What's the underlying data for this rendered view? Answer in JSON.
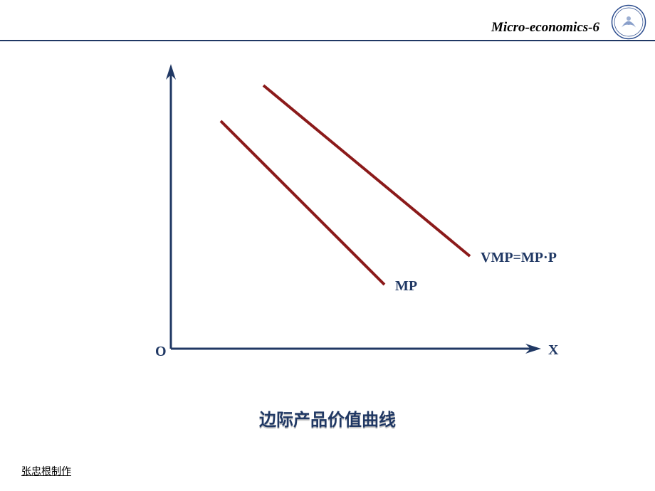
{
  "header": {
    "title": "Micro-economics-6",
    "title_color": "#000000",
    "underline_color": "#203864",
    "logo": {
      "ring_color": "#2a4b8d",
      "inner_color": "#ffffff",
      "accent_color": "#3a5fa6"
    }
  },
  "chart": {
    "type": "line",
    "background_color": "#ffffff",
    "axes": {
      "color": "#203864",
      "stroke_width": 3,
      "arrow_size": 12,
      "origin_label": "O",
      "x_label": "X",
      "label_color": "#203864",
      "label_fontsize": 20,
      "x_range": [
        0,
        520
      ],
      "y_range": [
        0,
        380
      ]
    },
    "lines": [
      {
        "id": "mp",
        "label": "MP",
        "label_color": "#203864",
        "color": "#8b1a1a",
        "stroke_width": 4,
        "x1": 70,
        "y1": 120,
        "x2": 300,
        "y2": 350
      },
      {
        "id": "vmp",
        "label": "VMP=MP·P",
        "label_color": "#203864",
        "color": "#8b1a1a",
        "stroke_width": 4,
        "x1": 130,
        "y1": 70,
        "x2": 420,
        "y2": 310
      }
    ],
    "title": "边际产品价值曲线",
    "title_color": "#203864",
    "title_fontsize": 24
  },
  "footer": {
    "text": "张忠根制作",
    "color": "#000000"
  }
}
